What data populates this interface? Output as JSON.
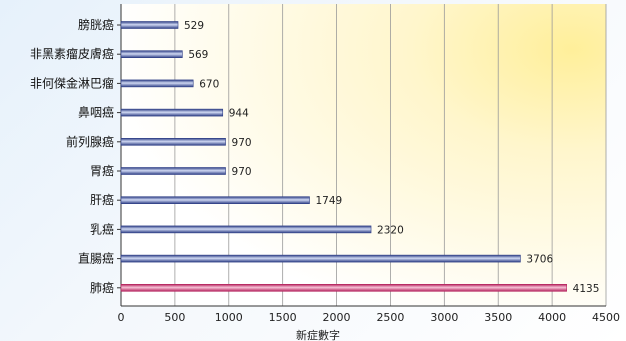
{
  "chart_data": {
    "type": "bar",
    "orientation": "horizontal",
    "categories": [
      "膀胱癌",
      "非黑素瘤皮膚癌",
      "非何傑金淋巴瘤",
      "鼻咽癌",
      "前列腺癌",
      "胃癌",
      "肝癌",
      "乳癌",
      "直腸癌",
      "肺癌"
    ],
    "values": [
      529,
      569,
      670,
      944,
      970,
      970,
      1749,
      2320,
      3706,
      4135
    ],
    "xlabel": "新症數字",
    "ylabel": "",
    "xlim": [
      0,
      4500
    ],
    "xticks": [
      0,
      500,
      1000,
      1500,
      2000,
      2500,
      3000,
      3500,
      4000,
      4500
    ],
    "grid": true,
    "legend": "none",
    "bar_colors": {
      "default_dark": "#2f3f86",
      "default_light": "#cfd8f2",
      "highlight_dark": "#b4235e",
      "highlight_light": "#f7c2d6"
    },
    "highlight_category": "肺癌"
  }
}
